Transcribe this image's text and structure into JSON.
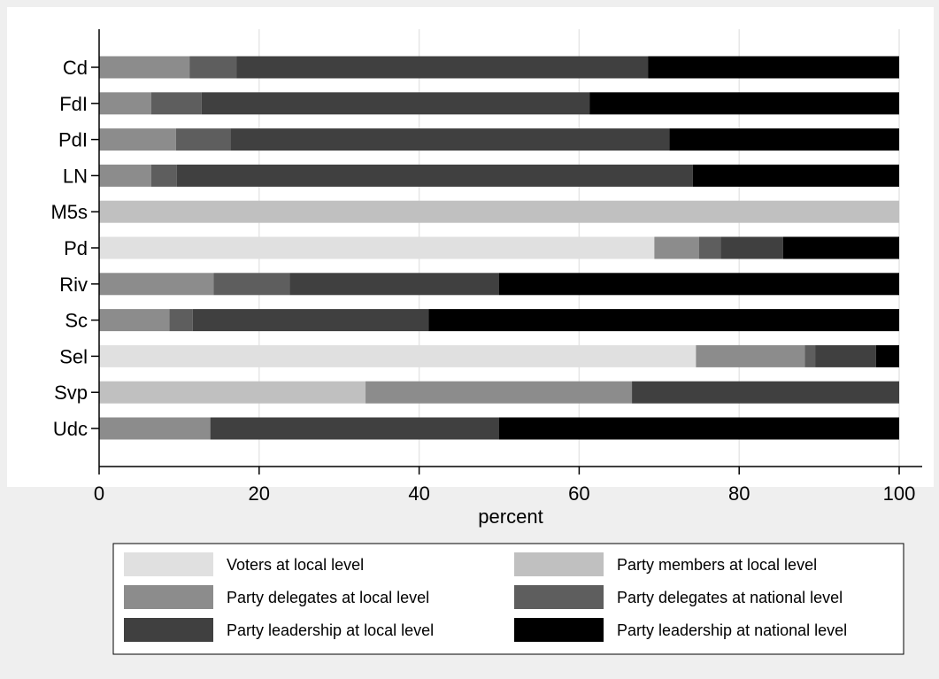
{
  "chart_data": {
    "type": "bar",
    "orientation": "horizontal",
    "stacked": true,
    "categories": [
      "Cd",
      "FdI",
      "PdI",
      "LN",
      "M5s",
      "Pd",
      "Riv",
      "Sc",
      "Sel",
      "Svp",
      "Udc"
    ],
    "series": [
      {
        "name": "Voters at local level",
        "color": "#e0e0e0",
        "values": [
          0,
          0,
          0,
          0,
          0,
          69.4,
          0,
          0,
          74.6,
          0,
          0
        ]
      },
      {
        "name": "Party members at local level",
        "color": "#c0c0c0",
        "values": [
          0,
          0,
          0,
          0,
          100,
          0,
          0,
          0,
          0,
          33.3,
          0
        ]
      },
      {
        "name": "Party delegates at local level",
        "color": "#8c8c8c",
        "values": [
          11.3,
          6.5,
          9.6,
          6.5,
          0,
          5.6,
          14.3,
          8.8,
          13.6,
          33.3,
          13.9
        ]
      },
      {
        "name": "Party delegates at national level",
        "color": "#5e5e5e",
        "values": [
          5.9,
          6.3,
          6.8,
          3.2,
          0,
          2.7,
          9.5,
          2.9,
          1.3,
          0,
          0
        ]
      },
      {
        "name": "Party leadership at local level",
        "color": "#404040",
        "values": [
          51.4,
          48.5,
          54.9,
          64.5,
          0,
          7.8,
          26.2,
          29.5,
          7.6,
          33.4,
          36.1
        ]
      },
      {
        "name": "Party leadership at national level",
        "color": "#000000",
        "values": [
          31.4,
          38.7,
          28.7,
          25.8,
          0,
          14.5,
          50.0,
          58.8,
          2.9,
          0,
          50.0
        ]
      }
    ],
    "xlabel": "percent",
    "ylabel": "",
    "xlim": [
      0,
      100
    ],
    "xticks": [
      0,
      20,
      40,
      60,
      80,
      100
    ],
    "grid": true,
    "legend_position": "bottom",
    "plot_background": "#ffffff",
    "page_background": "#efefef"
  }
}
